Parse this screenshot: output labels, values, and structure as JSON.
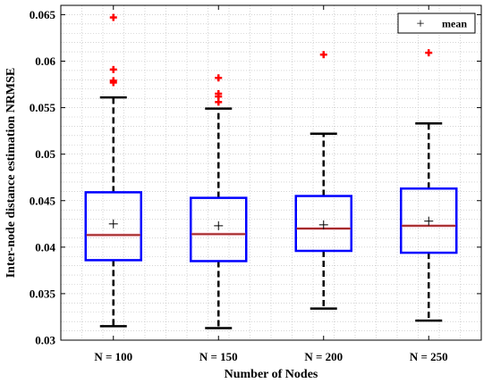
{
  "chart_data": {
    "type": "box",
    "xlabel": "Number of Nodes",
    "ylabel": "Inter-node distance estimation NRMSE",
    "ylim": [
      0.03,
      0.066
    ],
    "yticks": [
      0.03,
      0.035,
      0.04,
      0.045,
      0.05,
      0.055,
      0.06,
      0.065
    ],
    "ytick_labels": [
      "0.03",
      "0.035",
      "0.04",
      "0.045",
      "0.05",
      "0.055",
      "0.06",
      "0.065"
    ],
    "grid": true,
    "legend": {
      "label": "mean",
      "marker": "+",
      "placement": "top-right"
    },
    "colors": {
      "box": "#0000ff",
      "median": "#a52a2a",
      "whisker": "#000000",
      "outlier": "#ff0000",
      "mean": "#000000",
      "grid": "#bbbbbb"
    },
    "categories": [
      "N = 100",
      "N = 150",
      "N = 200",
      "N = 250"
    ],
    "boxes": [
      {
        "whisker_low": 0.0315,
        "q1": 0.0386,
        "median": 0.0413,
        "q3": 0.0459,
        "whisker_high": 0.0561,
        "mean": 0.0425,
        "outliers": [
          0.0647,
          0.0591,
          0.0579,
          0.0577
        ]
      },
      {
        "whisker_low": 0.0313,
        "q1": 0.0385,
        "median": 0.0414,
        "q3": 0.0453,
        "whisker_high": 0.0549,
        "mean": 0.0423,
        "outliers": [
          0.0582,
          0.0565,
          0.0562,
          0.0556
        ]
      },
      {
        "whisker_low": 0.0334,
        "q1": 0.0396,
        "median": 0.042,
        "q3": 0.0455,
        "whisker_high": 0.0522,
        "mean": 0.0424,
        "outliers": [
          0.0607
        ]
      },
      {
        "whisker_low": 0.0321,
        "q1": 0.0394,
        "median": 0.0423,
        "q3": 0.0463,
        "whisker_high": 0.0533,
        "mean": 0.0428,
        "outliers": [
          0.0609
        ]
      }
    ]
  }
}
